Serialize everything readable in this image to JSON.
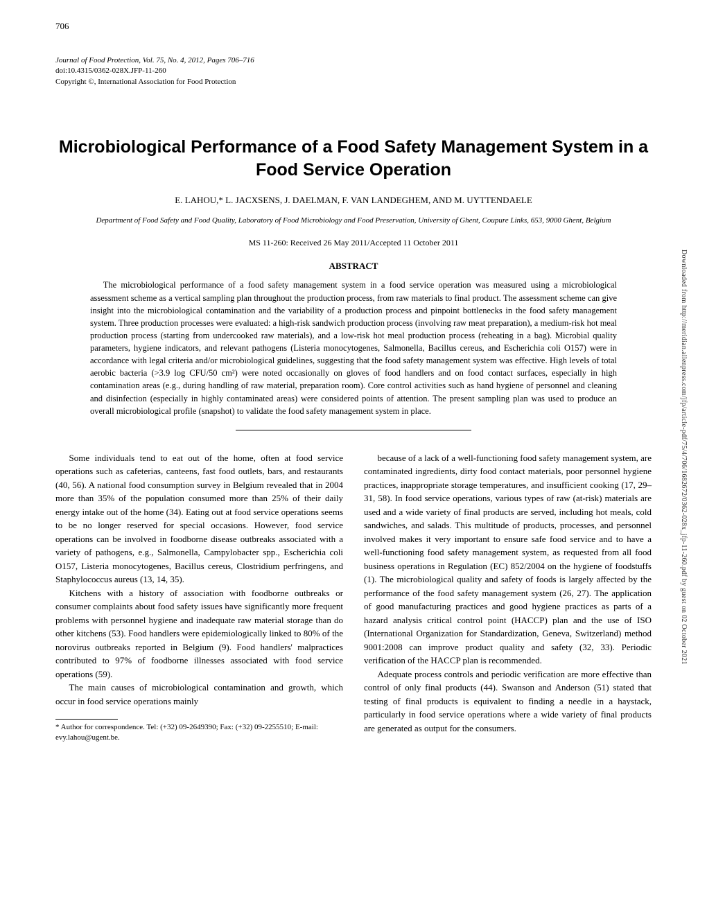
{
  "page_number": "706",
  "journal": {
    "line1": "Journal of Food Protection, Vol. 75, No. 4, 2012, Pages 706–716",
    "line2": "doi:10.4315/0362-028X.JFP-11-260",
    "line3": "Copyright ©, International Association for Food Protection"
  },
  "title": "Microbiological Performance of a Food Safety Management System in a Food Service Operation",
  "authors": "E. LAHOU,* L. JACXSENS, J. DAELMAN, F. VAN LANDEGHEM, AND M. UYTTENDAELE",
  "affiliation": "Department of Food Safety and Food Quality, Laboratory of Food Microbiology and Food Preservation, University of Ghent, Coupure Links, 653, 9000 Ghent, Belgium",
  "ms_info": "MS 11-260: Received 26 May 2011/Accepted 11 October 2011",
  "abstract_heading": "ABSTRACT",
  "abstract_text": "The microbiological performance of a food safety management system in a food service operation was measured using a microbiological assessment scheme as a vertical sampling plan throughout the production process, from raw materials to final product. The assessment scheme can give insight into the microbiological contamination and the variability of a production process and pinpoint bottlenecks in the food safety management system. Three production processes were evaluated: a high-risk sandwich production process (involving raw meat preparation), a medium-risk hot meal production process (starting from undercooked raw materials), and a low-risk hot meal production process (reheating in a bag). Microbial quality parameters, hygiene indicators, and relevant pathogens (Listeria monocytogenes, Salmonella, Bacillus cereus, and Escherichia coli O157) were in accordance with legal criteria and/or microbiological guidelines, suggesting that the food safety management system was effective. High levels of total aerobic bacteria (>3.9 log CFU/50 cm²) were noted occasionally on gloves of food handlers and on food contact surfaces, especially in high contamination areas (e.g., during handling of raw material, preparation room). Core control activities such as hand hygiene of personnel and cleaning and disinfection (especially in highly contaminated areas) were considered points of attention. The present sampling plan was used to produce an overall microbiological profile (snapshot) to validate the food safety management system in place.",
  "body": {
    "left": {
      "p1": "Some individuals tend to eat out of the home, often at food service operations such as cafeterias, canteens, fast food outlets, bars, and restaurants (40, 56). A national food consumption survey in Belgium revealed that in 2004 more than 35% of the population consumed more than 25% of their daily energy intake out of the home (34). Eating out at food service operations seems to be no longer reserved for special occasions. However, food service operations can be involved in foodborne disease outbreaks associated with a variety of pathogens, e.g., Salmonella, Campylobacter spp., Escherichia coli O157, Listeria monocytogenes, Bacillus cereus, Clostridium perfringens, and Staphylococcus aureus (13, 14, 35).",
      "p2": "Kitchens with a history of association with foodborne outbreaks or consumer complaints about food safety issues have significantly more frequent problems with personnel hygiene and inadequate raw material storage than do other kitchens (53). Food handlers were epidemiologically linked to 80% of the norovirus outbreaks reported in Belgium (9). Food handlers' malpractices contributed to 97% of foodborne illnesses associated with food service operations (59).",
      "p3": "The main causes of microbiological contamination and growth, which occur in food service operations mainly"
    },
    "right": {
      "p1": "because of a lack of a well-functioning food safety management system, are contaminated ingredients, dirty food contact materials, poor personnel hygiene practices, inappropriate storage temperatures, and insufficient cooking (17, 29–31, 58). In food service operations, various types of raw (at-risk) materials are used and a wide variety of final products are served, including hot meals, cold sandwiches, and salads. This multitude of products, processes, and personnel involved makes it very important to ensure safe food service and to have a well-functioning food safety management system, as requested from all food business operations in Regulation (EC) 852/2004 on the hygiene of foodstuffs (1). The microbiological quality and safety of foods is largely affected by the performance of the food safety management system (26, 27). The application of good manufacturing practices and good hygiene practices as parts of a hazard analysis critical control point (HACCP) plan and the use of ISO (International Organization for Standardization, Geneva, Switzerland) method 9001:2008 can improve product quality and safety (32, 33). Periodic verification of the HACCP plan is recommended.",
      "p2": "Adequate process controls and periodic verification are more effective than control of only final products (44). Swanson and Anderson (51) stated that testing of final products is equivalent to finding a needle in a haystack, particularly in food service operations where a wide variety of final products are generated as output for the consumers."
    }
  },
  "footnote": "* Author for correspondence. Tel: (+32) 09-2649390; Fax: (+32) 09-2255510; E-mail: evy.lahou@ugent.be.",
  "side_note": "Downloaded from http://meridian.allenpress.com/jfp/article-pdf/75/4/706/1682672/0362-028x_jfp-11-260.pdf by guest on 02 October 2021"
}
